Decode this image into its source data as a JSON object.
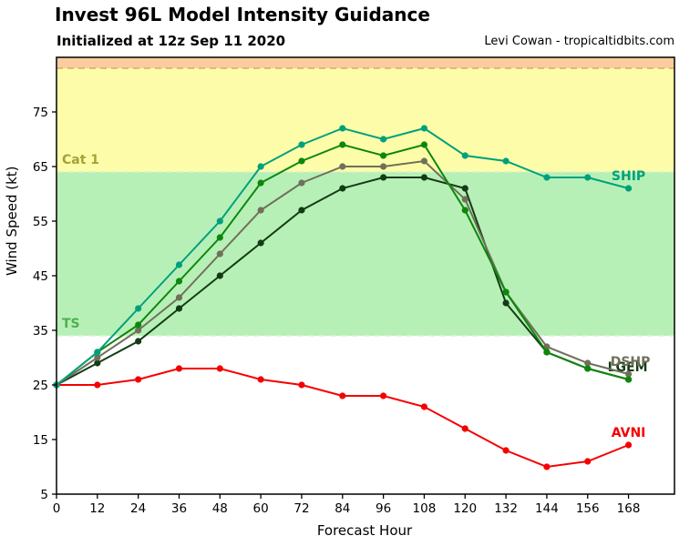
{
  "header": {
    "title": "Invest 96L Model Intensity Guidance",
    "subtitle": "Initialized at 12z Sep 11 2020",
    "credit": "Levi Cowan - tropicaltidbits.com"
  },
  "chart_data": {
    "type": "line",
    "title": "Invest 96L Model Intensity Guidance",
    "xlabel": "Forecast Hour",
    "ylabel": "Wind Speed (kt)",
    "x": [
      0,
      12,
      24,
      36,
      48,
      60,
      72,
      84,
      96,
      108,
      120,
      132,
      144,
      156,
      168
    ],
    "xticks": [
      0,
      12,
      24,
      36,
      48,
      60,
      72,
      84,
      96,
      108,
      120,
      132,
      144,
      156,
      168
    ],
    "yticks": [
      5,
      15,
      25,
      35,
      45,
      55,
      65,
      75
    ],
    "xlim": [
      0,
      181.5
    ],
    "ylim": [
      5,
      85
    ],
    "grid": false,
    "legend_position": "line-end-labels",
    "bands": [
      {
        "from": 5,
        "to": 34,
        "color": "#ffffff",
        "meaning": "below TS"
      },
      {
        "from": 34,
        "to": 64,
        "color": "#b7f0b7",
        "meaning": "Tropical Storm"
      },
      {
        "from": 64,
        "to": 83,
        "color": "#fdfda9",
        "meaning": "Category 1"
      },
      {
        "from": 83,
        "to": 85,
        "color": "#fbcc9e",
        "meaning": "Category 2"
      }
    ],
    "thresholds": [
      {
        "value": 34,
        "label": "TS",
        "label_color": "#4fb04f",
        "line_color": "#daf3da"
      },
      {
        "value": 64,
        "label": "Cat 1",
        "label_color": "#a3a338",
        "line_color": "#d9f0d0"
      },
      {
        "value": 83,
        "label": "",
        "label_color": "",
        "line_color": "#d8a878"
      }
    ],
    "series": [
      {
        "name": "AVNI",
        "color": "#f50000",
        "label_visible": true,
        "values": [
          25,
          25,
          26,
          28,
          28,
          26,
          25,
          23,
          23,
          21,
          17,
          13,
          10,
          11,
          14
        ]
      },
      {
        "name": "LGEM",
        "color": "#143c14",
        "label_visible": true,
        "values": [
          25,
          29,
          33,
          39,
          45,
          51,
          57,
          61,
          63,
          63,
          61,
          40,
          31,
          28,
          26
        ]
      },
      {
        "name": "DSHP",
        "color": "#70705a",
        "label_visible": true,
        "values": [
          25,
          30,
          35,
          41,
          49,
          57,
          62,
          65,
          65,
          66,
          59,
          42,
          32,
          29,
          27
        ]
      },
      {
        "name": "",
        "color": "#0c870c",
        "label_visible": false,
        "values": [
          25,
          31,
          36,
          44,
          52,
          62,
          66,
          69,
          67,
          69,
          57,
          42,
          31,
          28,
          26
        ]
      },
      {
        "name": "SHIP",
        "color": "#00a07c",
        "label_visible": true,
        "values": [
          25,
          31,
          39,
          47,
          55,
          65,
          69,
          72,
          70,
          72,
          67,
          66,
          63,
          63,
          61
        ]
      }
    ]
  }
}
